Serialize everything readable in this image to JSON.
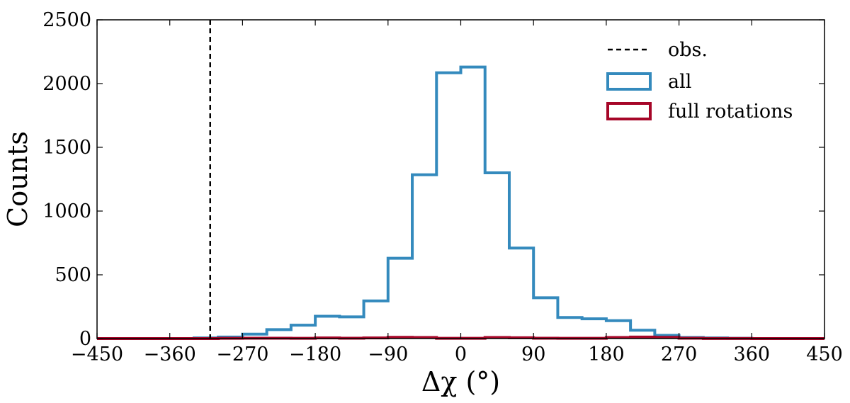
{
  "chart_data": {
    "type": "histogram",
    "xlabel": "Δχ (°)",
    "ylabel": "Counts",
    "xlim": [
      -450,
      450
    ],
    "ylim": [
      0,
      2500
    ],
    "xticks": [
      -450,
      -360,
      -270,
      -180,
      -90,
      0,
      90,
      180,
      270,
      360,
      450
    ],
    "xtick_labels": [
      "−450",
      "−360",
      "−270",
      "−180",
      "−90",
      "0",
      "90",
      "180",
      "270",
      "360",
      "450"
    ],
    "yticks": [
      0,
      500,
      1000,
      1500,
      2000,
      2500
    ],
    "ytick_labels": [
      "0",
      "500",
      "1000",
      "1500",
      "2000",
      "2500"
    ],
    "bin_edges": [
      -450,
      -420,
      -390,
      -360,
      -330,
      -300,
      -270,
      -240,
      -210,
      -180,
      -150,
      -120,
      -90,
      -60,
      -30,
      0,
      30,
      60,
      90,
      120,
      150,
      180,
      210,
      240,
      270,
      300,
      330,
      360,
      390,
      420,
      450
    ],
    "series": [
      {
        "name": "all",
        "color": "#348abd",
        "values": [
          0,
          0,
          0,
          0,
          5,
          12,
          35,
          70,
          105,
          175,
          170,
          295,
          630,
          1285,
          2085,
          2130,
          1300,
          710,
          320,
          165,
          155,
          140,
          65,
          25,
          8,
          5,
          2,
          0,
          0,
          0
        ]
      },
      {
        "name": "full rotations",
        "color": "#a60628",
        "values": [
          0,
          0,
          0,
          0,
          0,
          2,
          3,
          3,
          2,
          5,
          3,
          5,
          10,
          8,
          2,
          2,
          8,
          6,
          3,
          2,
          2,
          8,
          12,
          10,
          3,
          1,
          1,
          0,
          0,
          0
        ]
      }
    ],
    "vline": {
      "name": "obs.",
      "x": -310,
      "color": "#000000",
      "style": "dashed"
    },
    "legend": {
      "position": "top-right",
      "entries": [
        "obs.",
        "all",
        "full rotations"
      ]
    }
  }
}
